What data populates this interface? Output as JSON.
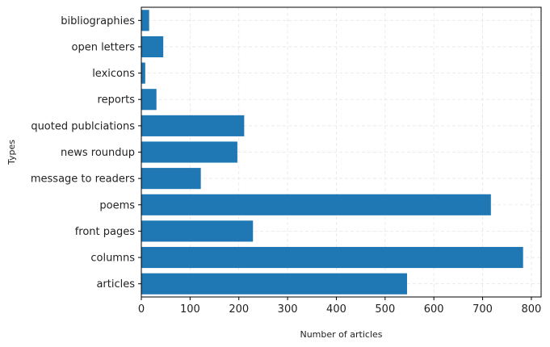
{
  "chart_data": {
    "type": "bar",
    "orientation": "horizontal",
    "categories": [
      "articles",
      "columns",
      "front pages",
      "poems",
      "message to readers",
      "news roundup",
      "quoted publciations",
      "reports",
      "lexicons",
      "open letters",
      "bibliographies"
    ],
    "values": [
      545,
      783,
      229,
      717,
      122,
      197,
      211,
      31,
      8,
      45,
      16
    ],
    "xlabel": "Number of articles",
    "ylabel": "Types",
    "xlim": [
      0,
      820
    ],
    "xticks": [
      "0",
      "100",
      "200",
      "300",
      "400",
      "500",
      "600",
      "700",
      "800"
    ],
    "grid": true,
    "bar_color": "#1f77b4"
  }
}
